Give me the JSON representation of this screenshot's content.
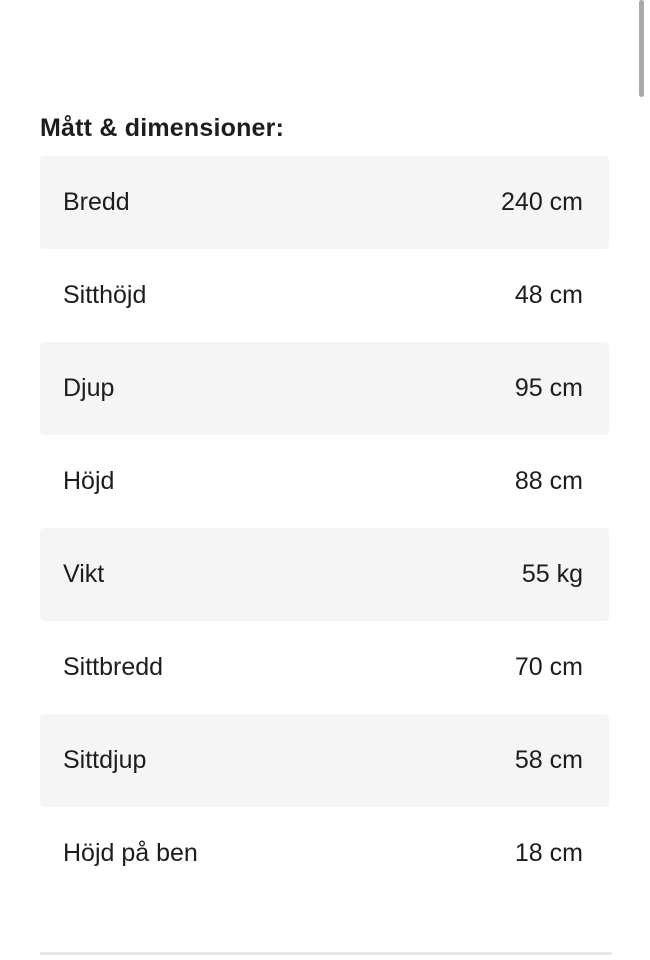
{
  "page": {
    "title": "Mått & dimensioner:"
  },
  "dimensions_table": {
    "rows": [
      {
        "label": "Bredd",
        "value": "240 cm"
      },
      {
        "label": "Sitthöjd",
        "value": "48 cm"
      },
      {
        "label": "Djup",
        "value": "95 cm"
      },
      {
        "label": "Höjd",
        "value": "88 cm"
      },
      {
        "label": "Vikt",
        "value": "55 kg"
      },
      {
        "label": "Sittbredd",
        "value": "70 cm"
      },
      {
        "label": "Sittdjup",
        "value": "58 cm"
      },
      {
        "label": "Höjd på ben",
        "value": "18 cm"
      }
    ]
  },
  "colors": {
    "page_background": "#ffffff",
    "row_alt_background": "#f5f5f5",
    "text": "#1d1d1d",
    "scrollbar_thumb": "#a9a9a9",
    "bottom_divider": "#e7e7e7"
  }
}
